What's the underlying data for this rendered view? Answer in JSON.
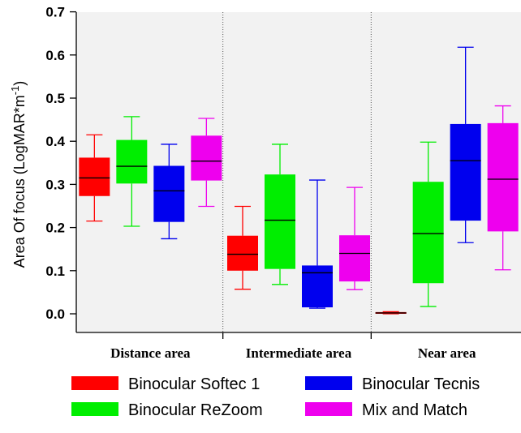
{
  "chart_data": {
    "type": "box",
    "ylabel": "Area Of focus (LogMAR*m⁻¹)",
    "ylabel_main": "Area Of focus (LogMAR*m",
    "ylabel_sup": "-1",
    "ylabel_close": ")",
    "ylim": [
      0,
      0.7
    ],
    "yticks": [
      "0.0",
      "0.1",
      "0.2",
      "0.3",
      "0.4",
      "0.5",
      "0.6",
      "0.7"
    ],
    "grid": false,
    "legend_position": "bottom",
    "categories": [
      "Distance area",
      "Intermediate area",
      "Near area"
    ],
    "series": [
      {
        "name": "Binocular Softec 1",
        "color": "#ff0000",
        "boxes": [
          {
            "min": 0.215,
            "q1": 0.273,
            "median": 0.315,
            "q3": 0.362,
            "max": 0.415
          },
          {
            "min": 0.057,
            "q1": 0.1,
            "median": 0.138,
            "q3": 0.181,
            "max": 0.249
          },
          {
            "min": 0.0,
            "q1": 0.0,
            "median": 0.002,
            "q3": 0.004,
            "max": 0.005
          }
        ]
      },
      {
        "name": "Binocular ReZoom",
        "color": "#00ee00",
        "boxes": [
          {
            "min": 0.203,
            "q1": 0.302,
            "median": 0.342,
            "q3": 0.403,
            "max": 0.457
          },
          {
            "min": 0.068,
            "q1": 0.104,
            "median": 0.217,
            "q3": 0.323,
            "max": 0.393
          },
          {
            "min": 0.017,
            "q1": 0.071,
            "median": 0.186,
            "q3": 0.306,
            "max": 0.398
          }
        ]
      },
      {
        "name": "Binocular Tecnis",
        "color": "#0000ee",
        "boxes": [
          {
            "min": 0.174,
            "q1": 0.213,
            "median": 0.285,
            "q3": 0.343,
            "max": 0.393
          },
          {
            "min": 0.013,
            "q1": 0.015,
            "median": 0.095,
            "q3": 0.112,
            "max": 0.31
          },
          {
            "min": 0.165,
            "q1": 0.216,
            "median": 0.355,
            "q3": 0.44,
            "max": 0.618
          }
        ]
      },
      {
        "name": "Mix and Match",
        "color": "#ee00ee",
        "boxes": [
          {
            "min": 0.249,
            "q1": 0.309,
            "median": 0.354,
            "q3": 0.413,
            "max": 0.453
          },
          {
            "min": 0.056,
            "q1": 0.075,
            "median": 0.14,
            "q3": 0.182,
            "max": 0.293
          },
          {
            "min": 0.102,
            "q1": 0.191,
            "median": 0.312,
            "q3": 0.442,
            "max": 0.482
          }
        ]
      }
    ]
  }
}
